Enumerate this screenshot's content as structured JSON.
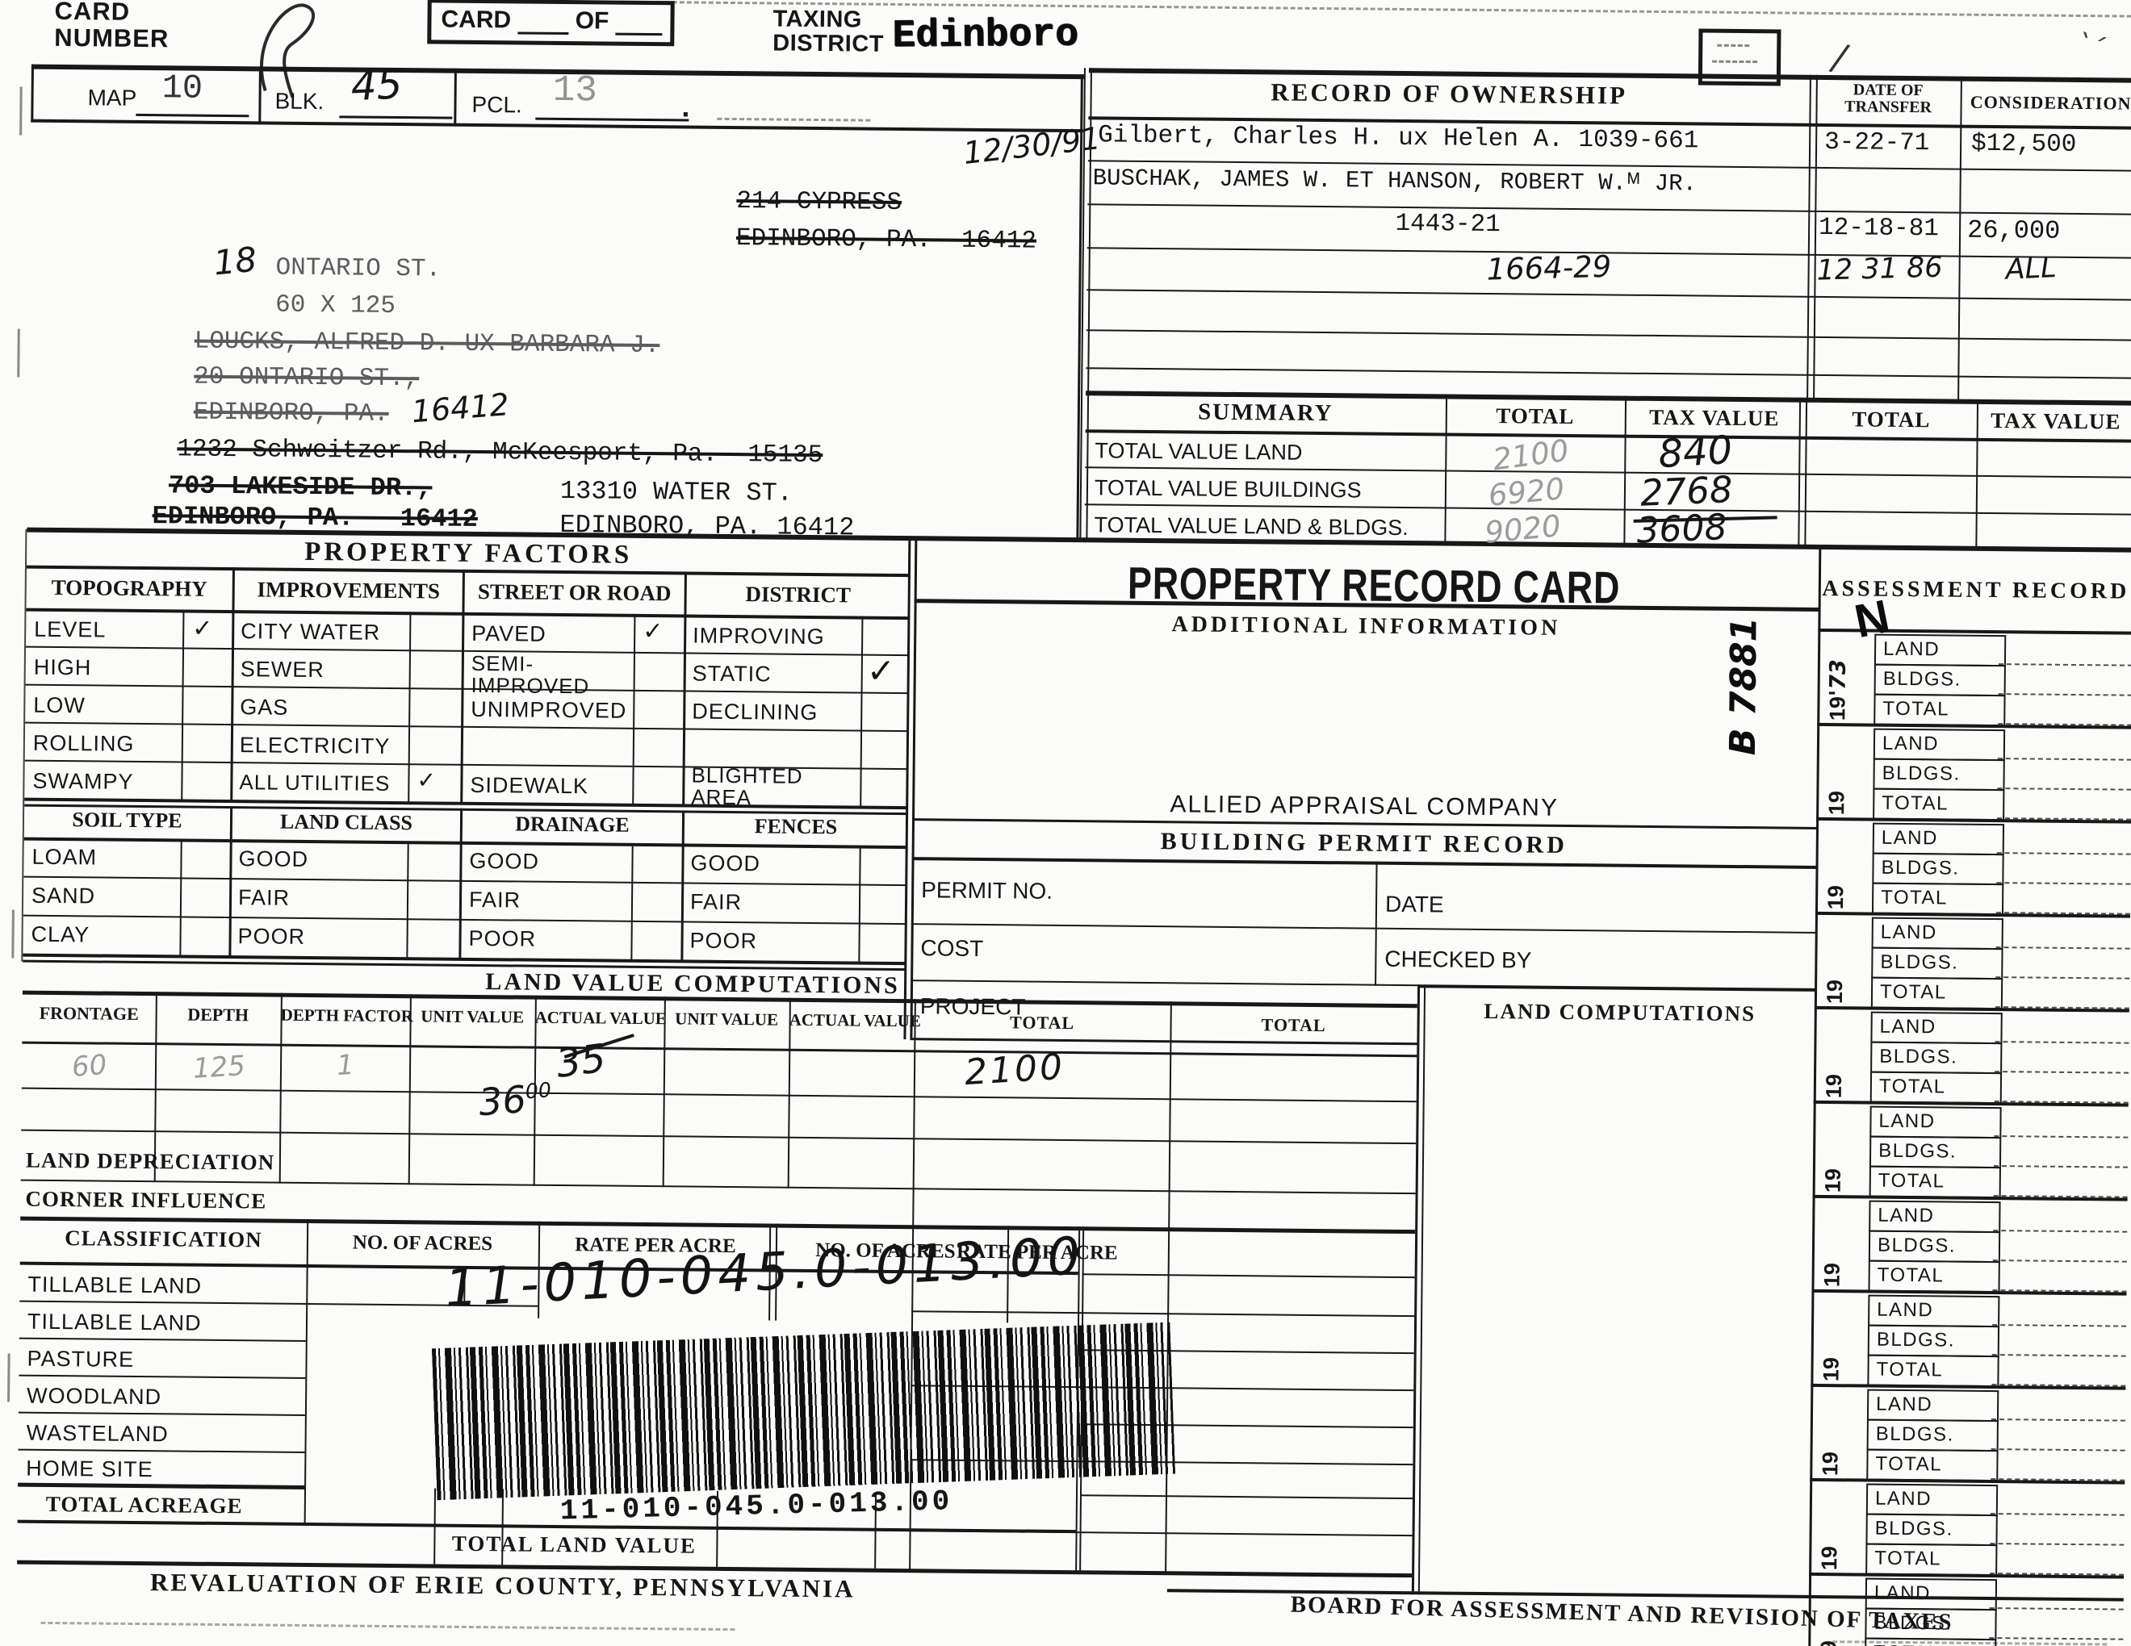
{
  "header": {
    "card_number_label": "CARD NUMBER",
    "card_of": {
      "card": "CARD",
      "of": "OF"
    },
    "taxing_district_label": "TAXING DISTRICT",
    "taxing_district_value": "Edinboro",
    "map_label": "MAP",
    "map_value": "10",
    "blk_label": "BLK.",
    "blk_value": "45",
    "pcl_label": "PCL.",
    "pcl_value": "13",
    "pcl_mark": "."
  },
  "address": {
    "date_note": "12/30/91",
    "old_address1": "214 CYPRESS",
    "old_address2": "EDINBORO, PA.  16412",
    "street_number": "18",
    "street_name": "ONTARIO ST.",
    "lot_size": "60 X 125",
    "old_owner": "LOUCKS, ALFRED D. UX BARBARA J.",
    "old_street": "20 ONTARIO ST.,",
    "old_city": "EDINBORO, PA.",
    "old_zip_hand": "16412",
    "old_address3": "1232 Schweitzer Rd., McKeesport, Pa.  15135",
    "old_address4": "703 LAKESIDE DR.,",
    "new_street": "13310 WATER ST.",
    "old_address5": "EDINBORO, PA.   16412",
    "new_city": "EDINBORO, PA. 16412"
  },
  "ownership": {
    "title": "RECORD OF OWNERSHIP",
    "date_col": "DATE OF TRANSFER",
    "consideration_col": "CONSIDERATION",
    "rows": [
      {
        "name": "Gilbert, Charles H. ux Helen A. 1039-661",
        "date": "3-22-71",
        "consideration": "$12,500"
      },
      {
        "name": "BUSCHAK, JAMES W. ET HANSON, ROBERT W.ᴹ JR.",
        "date": "",
        "consideration": ""
      },
      {
        "name": "1443-21",
        "date": "12-18-81",
        "consideration": "26,000"
      },
      {
        "name": "1664-29",
        "date": "12 31 86",
        "consideration": "ALL"
      }
    ]
  },
  "summary": {
    "title": "SUMMARY",
    "total_col": "TOTAL",
    "tax_col": "TAX VALUE",
    "rows": [
      {
        "label": "TOTAL VALUE LAND",
        "total": "2100",
        "tax": "840"
      },
      {
        "label": "TOTAL VALUE BUILDINGS",
        "total": "6920",
        "tax": "2768"
      },
      {
        "label": "TOTAL VALUE LAND & BLDGS.",
        "total": "9020",
        "tax": "3608"
      }
    ]
  },
  "factors": {
    "title": "PROPERTY FACTORS",
    "columns": [
      {
        "header": "TOPOGRAPHY",
        "items": [
          {
            "label": "LEVEL",
            "check": "✓"
          },
          {
            "label": "HIGH",
            "check": ""
          },
          {
            "label": "LOW",
            "check": ""
          },
          {
            "label": "ROLLING",
            "check": ""
          },
          {
            "label": "SWAMPY",
            "check": ""
          }
        ]
      },
      {
        "header": "IMPROVEMENTS",
        "items": [
          {
            "label": "CITY WATER",
            "check": ""
          },
          {
            "label": "SEWER",
            "check": ""
          },
          {
            "label": "GAS",
            "check": ""
          },
          {
            "label": "ELECTRICITY",
            "check": ""
          },
          {
            "label": "ALL UTILITIES",
            "check": "✓"
          }
        ]
      },
      {
        "header": "STREET OR ROAD",
        "items": [
          {
            "label": "PAVED",
            "check": "✓"
          },
          {
            "label": "SEMI-IMPROVED",
            "check": ""
          },
          {
            "label": "UNIMPROVED",
            "check": ""
          },
          {
            "label": "",
            "check": ""
          },
          {
            "label": "SIDEWALK",
            "check": ""
          }
        ]
      },
      {
        "header": "DISTRICT",
        "items": [
          {
            "label": "IMPROVING",
            "check": ""
          },
          {
            "label": "STATIC",
            "check": "✓"
          },
          {
            "label": "DECLINING",
            "check": ""
          },
          {
            "label": "",
            "check": ""
          },
          {
            "label": "BLIGHTED AREA",
            "check": ""
          }
        ]
      }
    ]
  },
  "soil": {
    "headers": [
      "SOIL TYPE",
      "LAND CLASS",
      "DRAINAGE",
      "FENCES"
    ],
    "rows": [
      [
        "LOAM",
        "GOOD",
        "GOOD",
        "GOOD"
      ],
      [
        "SAND",
        "FAIR",
        "FAIR",
        "FAIR"
      ],
      [
        "CLAY",
        "POOR",
        "POOR",
        "POOR"
      ]
    ]
  },
  "lvc": {
    "title": "LAND VALUE COMPUTATIONS",
    "headers": [
      "FRONTAGE",
      "DEPTH",
      "DEPTH FACTOR",
      "UNIT VALUE",
      "ACTUAL VALUE",
      "UNIT VALUE",
      "ACTUAL VALUE",
      "TOTAL",
      "TOTAL"
    ],
    "row": {
      "frontage": "60",
      "depth": "125",
      "factor": "1",
      "unit": "36",
      "unit_sup": "00",
      "actual": "35",
      "total": "2100"
    },
    "depreciation": "LAND DEPRECIATION",
    "corner": "CORNER INFLUENCE"
  },
  "classification": {
    "header": "CLASSIFICATION",
    "acres_col": "NO. OF ACRES",
    "rate_col": "RATE PER ACRE",
    "rows": [
      "TILLABLE LAND",
      "TILLABLE LAND",
      "PASTURE",
      "WOODLAND",
      "WASTELAND",
      "HOME SITE"
    ],
    "total_acreage": "TOTAL ACREAGE",
    "total_land_value": "TOTAL LAND VALUE"
  },
  "prc": {
    "title": "PROPERTY RECORD CARD",
    "additional": "ADDITIONAL INFORMATION",
    "company": "ALLIED APPRAISAL COMPANY",
    "permit_title": "BUILDING PERMIT RECORD",
    "permit_no": "PERMIT NO.",
    "date": "DATE",
    "cost": "COST",
    "checked_by": "CHECKED BY",
    "project": "PROJECT",
    "land_computations": "LAND COMPUTATIONS"
  },
  "parcel": {
    "handwritten": "11-010-045.0-013.00",
    "printed": "11-010-045.0-013.00"
  },
  "footer": {
    "left": "REVALUATION OF ERIE COUNTY, PENNSYLVANIA",
    "right": "BOARD FOR ASSESSMENT AND REVISION OF TAXES"
  },
  "assessment": {
    "title": "ASSESSMENT RECORD",
    "year_prefix": "19",
    "first_year": "'73",
    "n_stamp": "N",
    "b_stamp": "B 7881",
    "land": "LAND",
    "bldgs": "BLDGS.",
    "total": "TOTAL",
    "group_count": 11
  }
}
